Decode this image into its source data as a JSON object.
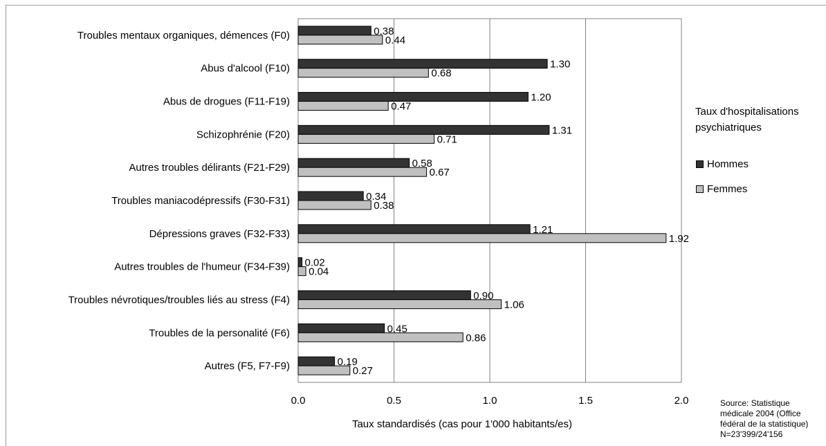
{
  "chart_data": {
    "type": "bar",
    "orientation": "horizontal",
    "categories": [
      "Troubles mentaux organiques, démences (F0)",
      "Abus d'alcool (F10)",
      "Abus de drogues (F11-F19)",
      "Schizophrénie (F20)",
      "Autres troubles délirants (F21-F29)",
      "Troubles maniacodépressifs (F30-F31)",
      "Dépressions graves (F32-F33)",
      "Autres troubles de l'humeur (F34-F39)",
      "Troubles névrotiques/troubles liés au stress (F4)",
      "Troubles de la personalité (F6)",
      "Autres (F5, F7-F9)"
    ],
    "series": [
      {
        "name": "Hommes",
        "color": "#333333",
        "values": [
          0.38,
          1.3,
          1.2,
          1.31,
          0.58,
          0.34,
          1.21,
          0.02,
          0.9,
          0.45,
          0.19
        ],
        "labels": [
          "0.38",
          "1.30",
          "1.20",
          "1.31",
          "0.58",
          "0.34",
          "1.21",
          "0.02",
          "0.90",
          "0.45",
          "0.19"
        ]
      },
      {
        "name": "Femmes",
        "color": "#c0c0c0",
        "values": [
          0.44,
          0.68,
          0.47,
          0.71,
          0.67,
          0.38,
          1.92,
          0.04,
          1.06,
          0.86,
          0.27
        ],
        "labels": [
          "0.44",
          "0.68",
          "0.47",
          "0.71",
          "0.67",
          "0.38",
          "1.92",
          "0.04",
          "1.06",
          "0.86",
          "0.27"
        ]
      }
    ],
    "xlim": [
      0,
      2.0
    ],
    "xticks": [
      0,
      0.5,
      1.0,
      1.5,
      2.0
    ],
    "xtick_labels": [
      "0.0",
      "0.5",
      "1.0",
      "1.5",
      "2.0"
    ],
    "xlabel": "Taux standardisés (cas pour 1'000 habitants/es)",
    "grid": "vertical",
    "legend_title": "Taux d'hospitalisations psychiatriques",
    "legend_position": "right",
    "source": "Source: Statistique médicale 2004 (Office fédéral de la statistique) N=23'399/24'156"
  }
}
